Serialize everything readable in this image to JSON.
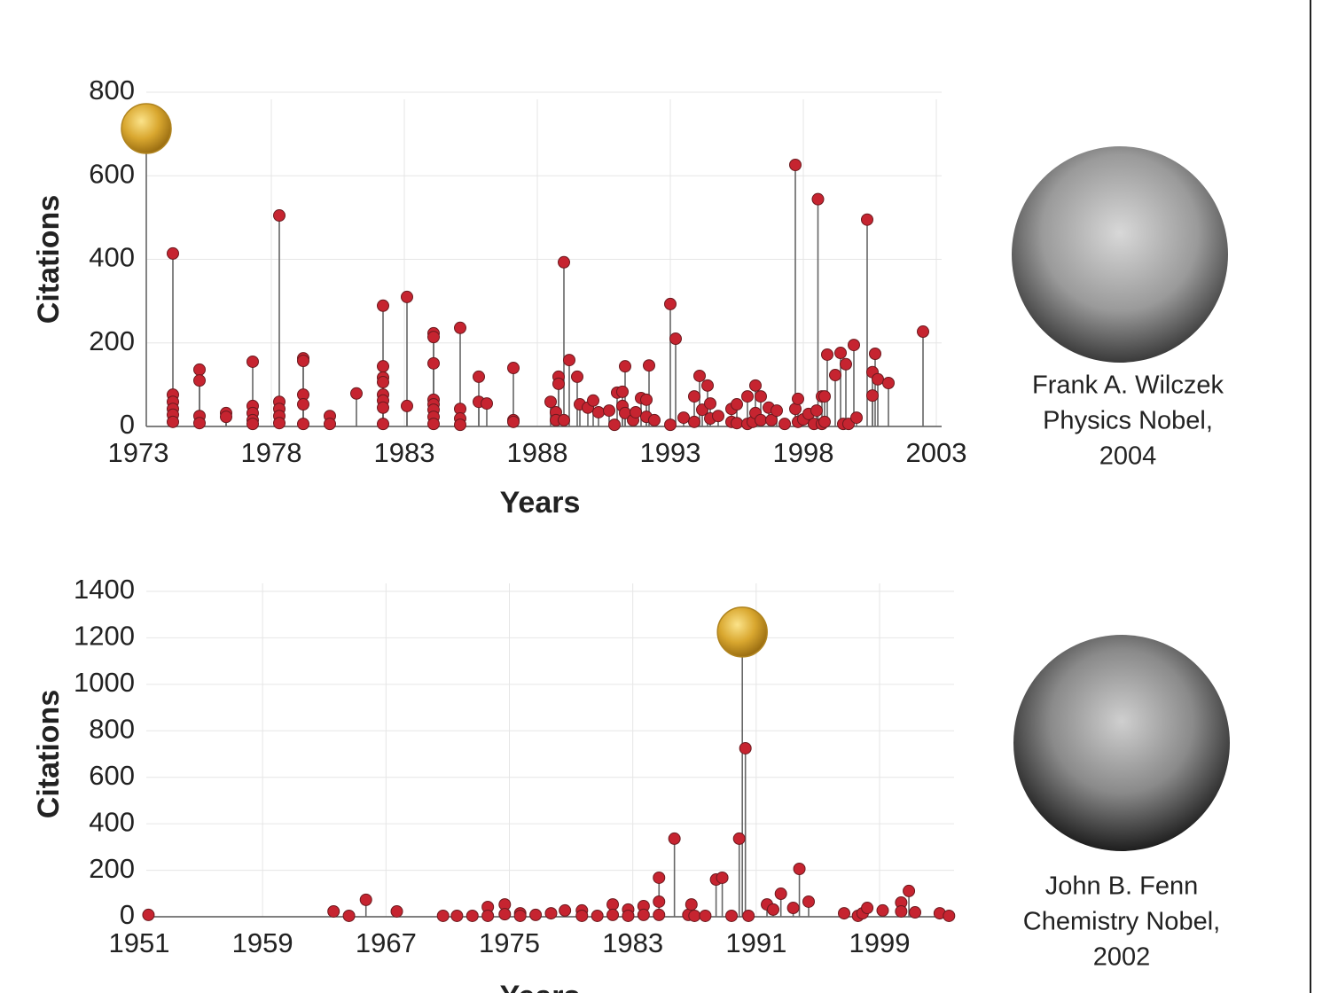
{
  "chart_data": [
    {
      "type": "stem",
      "xlabel": "Years",
      "ylabel": "Citations",
      "x": [
        1974.3,
        1974.3,
        1974.3,
        1974.3,
        1974.3,
        1974.3,
        1975.3,
        1975.3,
        1975.3,
        1975.3,
        1976.3,
        1976.3,
        1977.3,
        1977.3,
        1977.3,
        1977.3,
        1977.3,
        1978.3,
        1978.3,
        1978.3,
        1978.3,
        1978.3,
        1979.2,
        1979.2,
        1979.2,
        1979.2,
        1979.2,
        1980.2,
        1980.2,
        1981.2,
        1982.2,
        1982.2,
        1982.2,
        1982.2,
        1982.2,
        1982.2,
        1982.2,
        1982.2,
        1983.1,
        1983.1,
        1984.1,
        1984.1,
        1984.1,
        1984.1,
        1984.1,
        1984.1,
        1984.1,
        1984.1,
        1985.1,
        1985.1,
        1985.1,
        1985.1,
        1985.8,
        1985.8,
        1986.1,
        1987.1,
        1987.1,
        1987.1,
        1988.5,
        1988.7,
        1988.7,
        1988.8,
        1988.8,
        1989.0,
        1989.0,
        1989.2,
        1989.5,
        1989.6,
        1989.9,
        1990.1,
        1990.3,
        1990.7,
        1990.9,
        1991.0,
        1991.2,
        1991.2,
        1991.3,
        1991.3,
        1991.6,
        1991.7,
        1991.9,
        1992.1,
        1992.1,
        1992.2,
        1992.4,
        1993.0,
        1993.0,
        1993.2,
        1993.5,
        1993.9,
        1993.9,
        1994.1,
        1994.2,
        1994.4,
        1994.5,
        1994.5,
        1994.8,
        1995.3,
        1995.3,
        1995.5,
        1995.5,
        1995.9,
        1995.9,
        1996.1,
        1996.2,
        1996.2,
        1996.4,
        1996.4,
        1996.7,
        1996.8,
        1997.0,
        1997.3,
        1997.7,
        1997.7,
        1997.8,
        1997.8,
        1998.0,
        1998.2,
        1998.4,
        1998.5,
        1998.55,
        1998.7,
        1998.7,
        1998.8,
        1998.8,
        1998.9,
        1999.2,
        1999.4,
        1999.5,
        1999.6,
        1999.7,
        1999.9,
        2000.0,
        2000.4,
        2000.6,
        2000.6,
        2000.7,
        2000.8,
        2001.2,
        2002.5
      ],
      "values": [
        414,
        76,
        59,
        42,
        28,
        11,
        136,
        110,
        25,
        8,
        32,
        23,
        155,
        49,
        32,
        15,
        6,
        505,
        59,
        42,
        25,
        8,
        163,
        157,
        76,
        53,
        6,
        25,
        6,
        79,
        289,
        144,
        117,
        106,
        76,
        62,
        45,
        6,
        310,
        49,
        223,
        214,
        151,
        64,
        53,
        40,
        23,
        6,
        236,
        42,
        19,
        4,
        119,
        59,
        55,
        140,
        15,
        11,
        59,
        34,
        15,
        119,
        102,
        393,
        15,
        159,
        119,
        53,
        45,
        62,
        34,
        38,
        4,
        81,
        83,
        49,
        144,
        32,
        15,
        34,
        68,
        64,
        23,
        146,
        15,
        293,
        4,
        210,
        21,
        72,
        11,
        121,
        40,
        98,
        55,
        19,
        25,
        42,
        11,
        53,
        8,
        72,
        6,
        11,
        98,
        32,
        72,
        15,
        45,
        15,
        38,
        6,
        626,
        42,
        66,
        11,
        17,
        30,
        6,
        38,
        544,
        72,
        6,
        72,
        11,
        172,
        123,
        176,
        6,
        149,
        6,
        195,
        21,
        495,
        130,
        74,
        174,
        113,
        104,
        227
      ],
      "highlight": {
        "x": 1973.3,
        "value": 713
      },
      "xlim": [
        1973,
        2003
      ],
      "ylim": [
        0,
        800
      ],
      "xticks": [
        1973,
        1978,
        1983,
        1988,
        1993,
        1998,
        2003
      ],
      "yticks": [
        0,
        200,
        400,
        600,
        800
      ],
      "grid": true,
      "color": "#c62430",
      "stem_color": "#666666",
      "caption": [
        "Frank A. Wilczek",
        "Physics Nobel,",
        "2004"
      ]
    },
    {
      "type": "stem",
      "xlabel": "Years",
      "ylabel": "Citations",
      "x": [
        1951.6,
        1963.6,
        1964.6,
        1965.7,
        1967.7,
        1970.7,
        1971.6,
        1972.6,
        1973.6,
        1973.6,
        1974.7,
        1974.7,
        1975.7,
        1975.7,
        1976.7,
        1977.7,
        1978.6,
        1979.7,
        1979.7,
        1980.7,
        1981.7,
        1981.7,
        1982.7,
        1982.7,
        1983.7,
        1983.7,
        1984.7,
        1984.7,
        1984.7,
        1985.7,
        1986.6,
        1986.8,
        1987.0,
        1987.7,
        1988.4,
        1988.8,
        1989.4,
        1989.9,
        1990.3,
        1990.5,
        1991.7,
        1992.1,
        1992.6,
        1993.4,
        1993.8,
        1994.4,
        1996.7,
        1997.6,
        1997.9,
        1998.2,
        1999.2,
        2000.4,
        2000.4,
        2000.9,
        2001.3,
        2002.9,
        2003.5
      ],
      "values": [
        8,
        23,
        4,
        73,
        23,
        4,
        4,
        4,
        42,
        4,
        53,
        11,
        15,
        4,
        8,
        15,
        27,
        27,
        4,
        4,
        53,
        8,
        31,
        4,
        46,
        8,
        168,
        65,
        8,
        336,
        8,
        53,
        4,
        4,
        160,
        168,
        4,
        336,
        725,
        4,
        53,
        31,
        99,
        38,
        206,
        65,
        15,
        4,
        15,
        38,
        27,
        61,
        23,
        111,
        19,
        15,
        4
      ],
      "highlight": {
        "x": 1990.1,
        "value": 1225
      },
      "xlim": [
        1951,
        2004
      ],
      "ylim": [
        0,
        1400
      ],
      "xticks": [
        1951,
        1959,
        1967,
        1975,
        1983,
        1991,
        1999
      ],
      "yticks": [
        0,
        200,
        400,
        600,
        800,
        1000,
        1200,
        1400
      ],
      "grid": true,
      "color": "#c62430",
      "stem_color": "#666666",
      "caption": [
        "John B. Fenn",
        "Chemistry Nobel,",
        "2002"
      ]
    }
  ]
}
